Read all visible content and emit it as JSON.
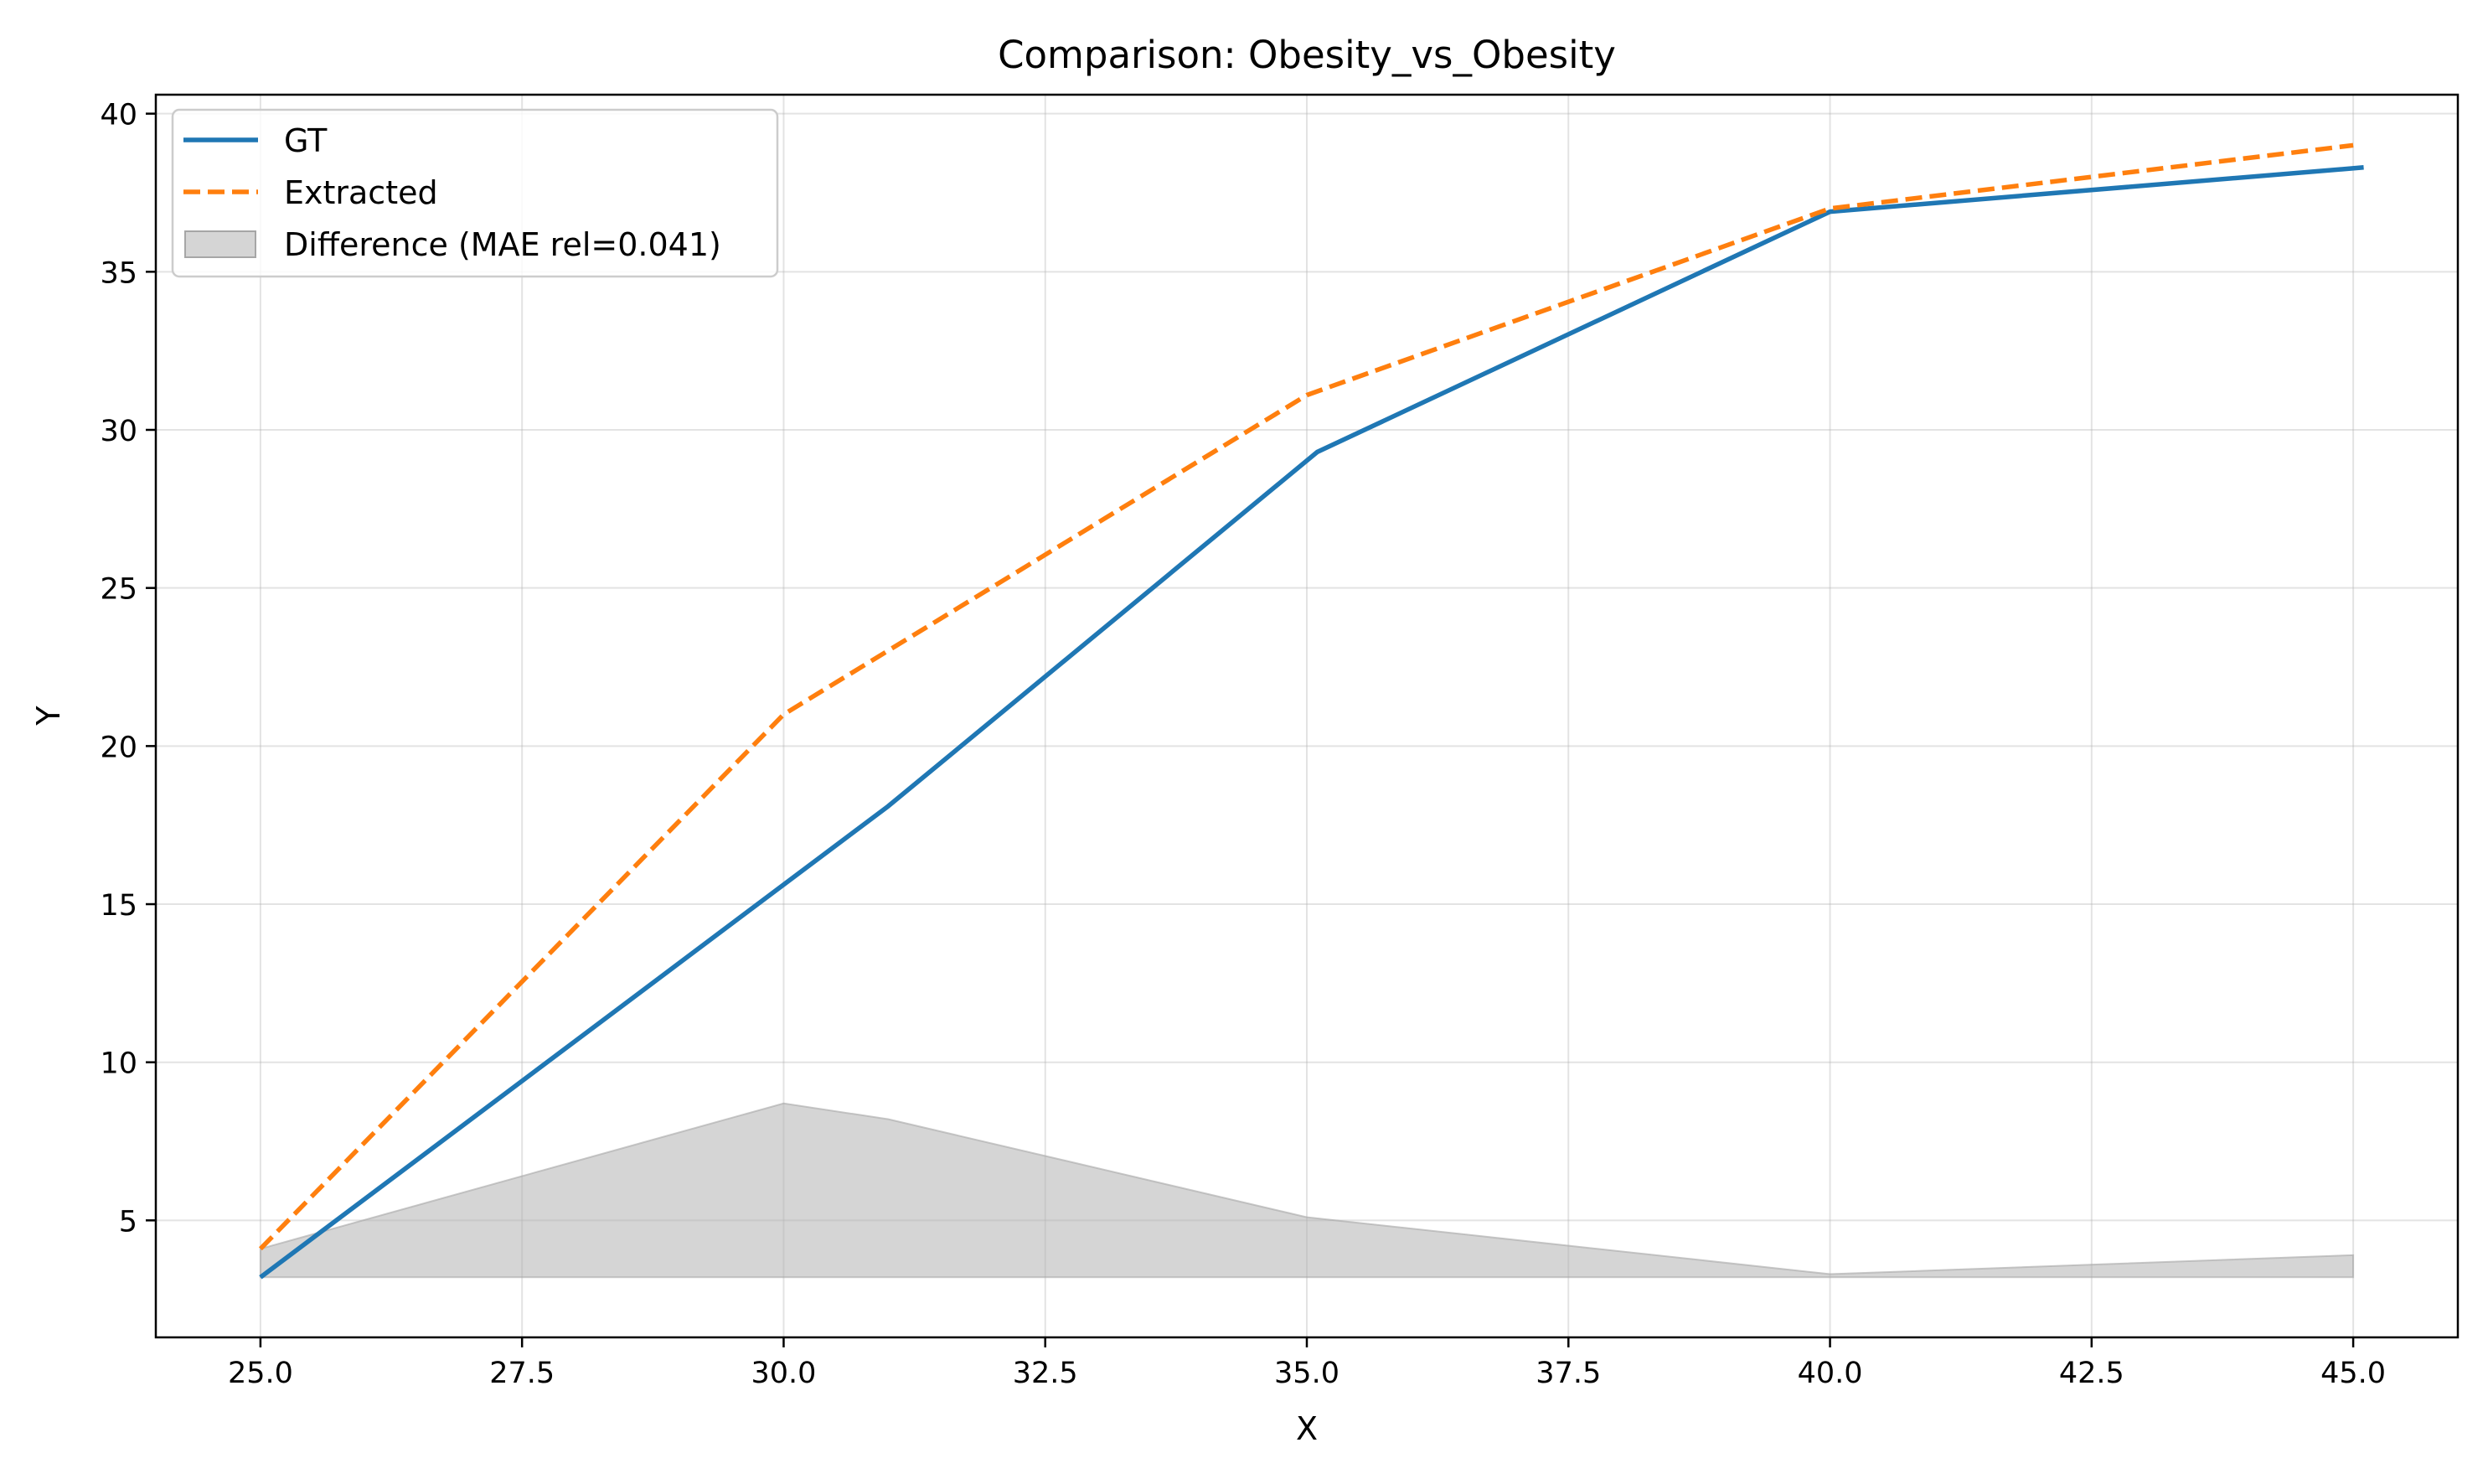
{
  "chart_data": {
    "type": "line",
    "title": "Comparison: Obesity_vs_Obesity",
    "xlabel": "X",
    "ylabel": "Y",
    "xlim": [
      24.0,
      46.0
    ],
    "ylim": [
      1.3,
      40.6
    ],
    "grid": true,
    "legend_position": "top-left",
    "x_ticks": [
      25.0,
      27.5,
      30.0,
      32.5,
      35.0,
      37.5,
      40.0,
      42.5,
      45.0
    ],
    "x_tick_labels": [
      "25.0",
      "27.5",
      "30.0",
      "32.5",
      "35.0",
      "37.5",
      "40.0",
      "42.5",
      "45.0"
    ],
    "y_ticks": [
      5,
      10,
      15,
      20,
      25,
      30,
      35,
      40
    ],
    "y_tick_labels": [
      "5",
      "10",
      "15",
      "20",
      "25",
      "30",
      "35",
      "40"
    ],
    "series": [
      {
        "name": "GT",
        "style": "solid",
        "color": "#1f77b4",
        "x": [
          25.0,
          31.0,
          35.1,
          40.0,
          45.1
        ],
        "y": [
          3.2,
          18.1,
          29.3,
          36.9,
          38.3
        ]
      },
      {
        "name": "Extracted",
        "style": "dashed",
        "color": "#ff7f0e",
        "x": [
          25.0,
          30.0,
          35.0,
          40.0,
          45.0
        ],
        "y": [
          4.1,
          21.0,
          31.1,
          37.0,
          39.0
        ]
      }
    ],
    "difference": {
      "name": "Difference (MAE rel=0.041)",
      "color": "#b3b3b3",
      "baseline": 3.2,
      "x": [
        25.0,
        30.0,
        31.0,
        35.0,
        40.0,
        45.0
      ],
      "y": [
        4.1,
        8.7,
        8.2,
        5.1,
        3.3,
        3.9
      ]
    }
  }
}
